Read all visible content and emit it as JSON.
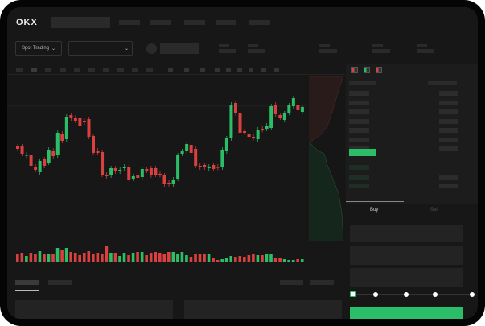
{
  "header": {
    "logo": "OKX"
  },
  "toolbar": {
    "market_selector": "Spot Trading",
    "chevron": "⌄"
  },
  "trade": {
    "tabs": [
      "Buy",
      "Sell"
    ]
  },
  "colors": {
    "up": "#2bbd68",
    "down": "#d9413f",
    "background": "#171717",
    "placeholder": "#2a2a2a"
  },
  "chart_data": {
    "type": "candlestick",
    "candles": [
      [
        118,
        115
      ],
      [
        118,
        109
      ],
      [
        107,
        108
      ],
      [
        108,
        94
      ],
      [
        93,
        89
      ],
      [
        86,
        100
      ],
      [
        102,
        94
      ],
      [
        98,
        114
      ],
      [
        113,
        106
      ],
      [
        107,
        135
      ],
      [
        134,
        125
      ],
      [
        127,
        155
      ],
      [
        157,
        153
      ],
      [
        154,
        150
      ],
      [
        154,
        144
      ],
      [
        150,
        148
      ],
      [
        152,
        130
      ],
      [
        131,
        110
      ],
      [
        113,
        110
      ],
      [
        111,
        83
      ],
      [
        83,
        81
      ],
      [
        82,
        91
      ],
      [
        91,
        87
      ],
      [
        87,
        89
      ],
      [
        91,
        93
      ],
      [
        93,
        77
      ],
      [
        78,
        81
      ],
      [
        82,
        79
      ],
      [
        80,
        90
      ],
      [
        90,
        88
      ],
      [
        91,
        82
      ],
      [
        91,
        83
      ],
      [
        84,
        83
      ],
      [
        82,
        71
      ],
      [
        73,
        71
      ],
      [
        71,
        77
      ],
      [
        78,
        107
      ],
      [
        109,
        112
      ],
      [
        113,
        121
      ],
      [
        120,
        110
      ],
      [
        115,
        94
      ],
      [
        94,
        92
      ],
      [
        95,
        92
      ],
      [
        91,
        93
      ],
      [
        95,
        90
      ],
      [
        93,
        92
      ],
      [
        92,
        114
      ],
      [
        112,
        128
      ],
      [
        128,
        170
      ],
      [
        172,
        159
      ],
      [
        159,
        135
      ],
      [
        137,
        135
      ],
      [
        134,
        130
      ],
      [
        130,
        129
      ],
      [
        127,
        139
      ],
      [
        140,
        139
      ],
      [
        140,
        144
      ],
      [
        141,
        168
      ],
      [
        170,
        158
      ],
      [
        157,
        154
      ],
      [
        151,
        159
      ],
      [
        160,
        169
      ],
      [
        168,
        178
      ],
      [
        170,
        163
      ],
      [
        161,
        167
      ]
    ],
    "volumes": [
      10,
      11,
      7,
      11,
      9,
      13,
      9,
      9,
      10,
      17,
      14,
      17,
      12,
      11,
      8,
      11,
      13,
      10,
      11,
      9,
      19,
      11,
      11,
      7,
      11,
      8,
      11,
      12,
      12,
      8,
      11,
      12,
      11,
      10,
      12,
      12,
      9,
      12,
      8,
      6,
      10,
      9,
      9,
      10,
      4,
      2,
      3,
      5,
      7,
      6,
      7,
      6,
      8,
      9,
      8,
      8,
      9,
      9,
      5,
      4,
      3,
      2,
      2,
      3,
      3
    ]
  }
}
